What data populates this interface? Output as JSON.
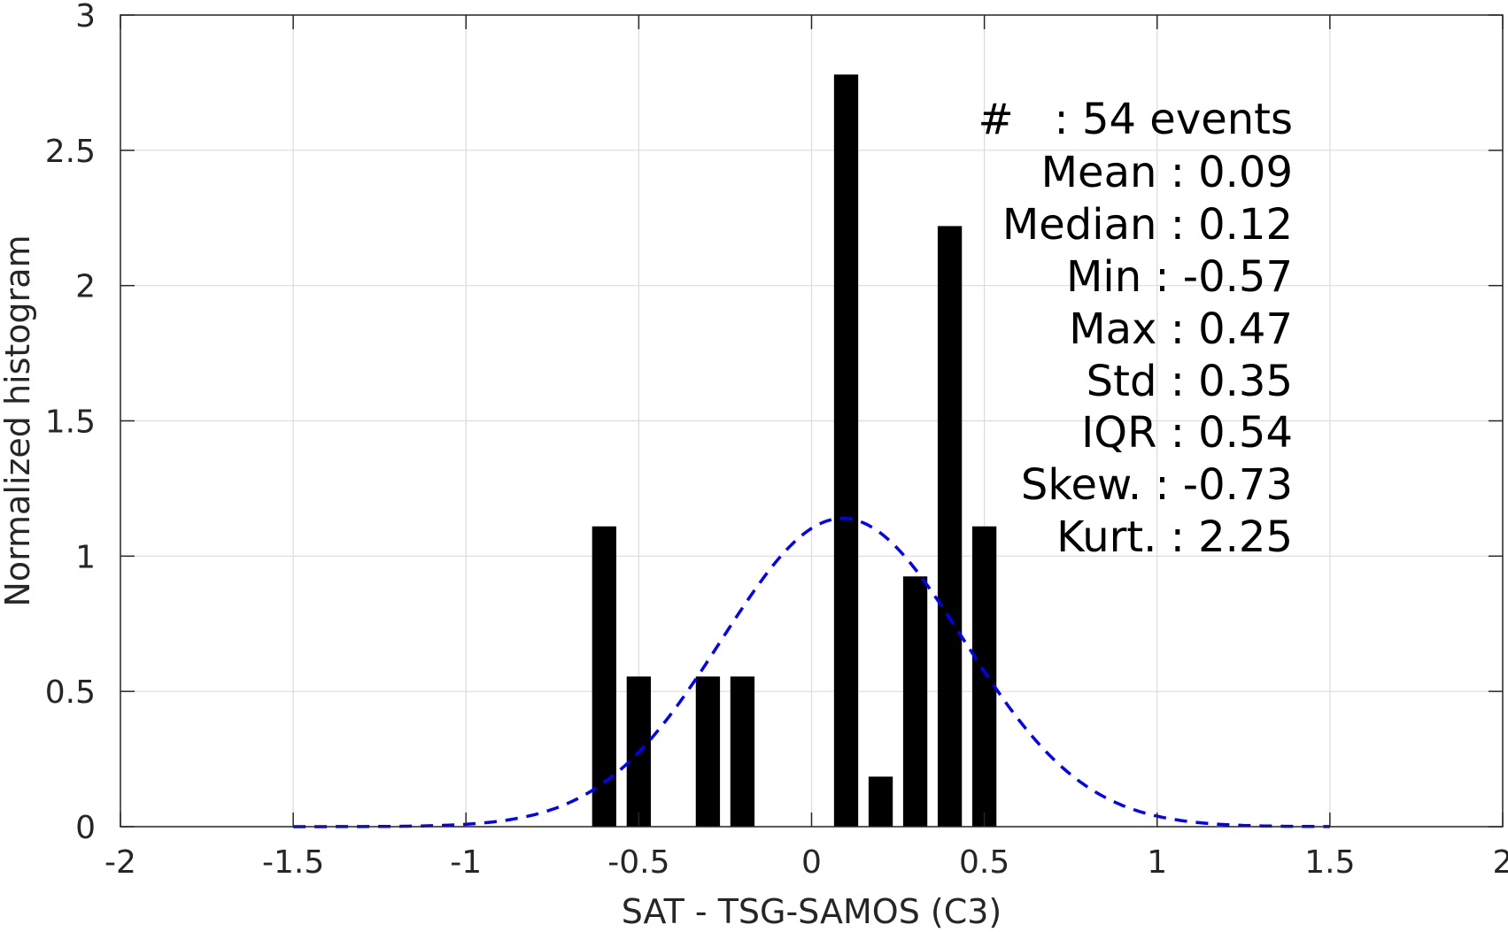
{
  "chart_data": {
    "type": "bar",
    "xlabel": "SAT - TSG-SAMOS (C3)",
    "ylabel": "Normalized histogram",
    "xlim": [
      -2,
      2
    ],
    "ylim": [
      0,
      3
    ],
    "x_ticks": [
      "-2",
      "-1.5",
      "-1",
      "-0.5",
      "0",
      "0.5",
      "1",
      "1.5",
      "2"
    ],
    "y_ticks": [
      "0",
      "0.5",
      "1",
      "1.5",
      "2",
      "2.5",
      "3"
    ],
    "grid": true,
    "bar_color": "#000000",
    "bars": [
      {
        "x": -0.6,
        "value": 1.11
      },
      {
        "x": -0.5,
        "value": 0.555
      },
      {
        "x": -0.3,
        "value": 0.555
      },
      {
        "x": -0.2,
        "value": 0.555
      },
      {
        "x": 0.1,
        "value": 2.78
      },
      {
        "x": 0.2,
        "value": 0.185
      },
      {
        "x": 0.3,
        "value": 0.925
      },
      {
        "x": 0.4,
        "value": 2.22
      },
      {
        "x": 0.5,
        "value": 1.11
      }
    ],
    "bar_width": 0.07,
    "fit_curve": {
      "style": "dashed",
      "color": "#0000ff",
      "mean": 0.09,
      "std": 0.35,
      "x_range": [
        -1.5,
        1.5
      ]
    },
    "annotation": [
      {
        "label": "#  ",
        "value": ": 54 events"
      },
      {
        "label": "Mean",
        "value": ": 0.09"
      },
      {
        "label": "Median",
        "value": ": 0.12"
      },
      {
        "label": "Min",
        "value": ": -0.57"
      },
      {
        "label": "Max",
        "value": ": 0.47"
      },
      {
        "label": "Std",
        "value": ": 0.35"
      },
      {
        "label": "IQR",
        "value": ": 0.54"
      },
      {
        "label": "Skew.",
        "value": ": -0.73"
      },
      {
        "label": "Kurt.",
        "value": ": 2.25"
      }
    ]
  }
}
